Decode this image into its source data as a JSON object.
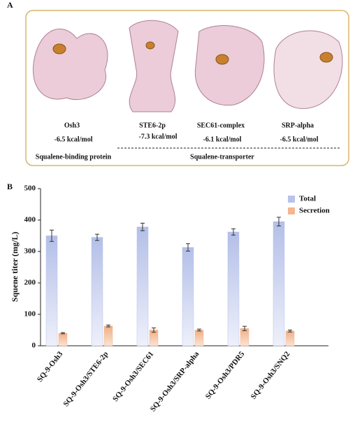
{
  "panel_a": {
    "label": "A",
    "proteins": [
      {
        "name": "Osh3",
        "energy": "-6.5 kcal/mol"
      },
      {
        "name": "STE6-2p",
        "energy": "-7.3 kcal/mol"
      },
      {
        "name": "SEC61-complex",
        "energy": "-6.1 kcal/mol"
      },
      {
        "name": "SRP-alpha",
        "energy": "-6.5 kcal/mol"
      }
    ],
    "groups": [
      "Squalene-binding protein",
      "Squalene-transporter"
    ]
  },
  "chart_data": {
    "type": "bar",
    "panel_label": "B",
    "y_label": "Squene titer (mg/L)",
    "categories": [
      "SQ-9-Osh3",
      "SQ-9-Osh3/STE6-2p",
      "SQ-9-Osh3/SEC61",
      "SQ-9-Osh3/SRP-alpha",
      "SQ-9-Osh3/PDR5",
      "SQ-9-Osh3/SNQ2"
    ],
    "series": [
      {
        "name": "Total",
        "color": "#b8c3ea",
        "values": [
          350,
          345,
          378,
          313,
          362,
          395
        ],
        "errors": [
          18,
          10,
          12,
          12,
          10,
          14
        ]
      },
      {
        "name": "Secretion",
        "color": "#f3b792",
        "values": [
          40,
          63,
          50,
          50,
          55,
          47
        ],
        "errors": [
          2,
          3,
          7,
          3,
          7,
          3
        ]
      }
    ],
    "ylim": [
      0,
      500
    ],
    "yticks": [
      0,
      100,
      200,
      300,
      400,
      500
    ],
    "legend": "top-right"
  }
}
